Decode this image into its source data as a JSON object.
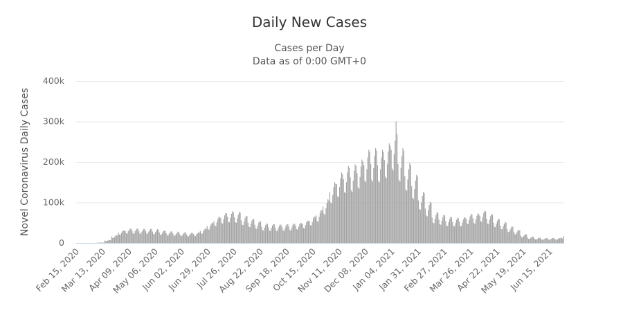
{
  "chart_data": {
    "type": "bar",
    "title": "Daily New Cases",
    "subtitle": [
      "Cases per Day",
      "Data as of 0:00 GMT+0"
    ],
    "ylabel": "Novel Coronavirus Daily Cases",
    "xlabel": "",
    "ylim": [
      0,
      400000
    ],
    "yticks": [
      0,
      100000,
      200000,
      300000,
      400000
    ],
    "ytick_labels": [
      "0",
      "100k",
      "200k",
      "300k",
      "400k"
    ],
    "grid": true,
    "legend": "none",
    "bar_color": "#a3a3a3",
    "x_start": "2020-02-15",
    "x_interval": "1 day",
    "x_end": "2021-06-28",
    "xtick_dates": [
      "2020-02-15",
      "2020-03-13",
      "2020-04-09",
      "2020-05-06",
      "2020-06-02",
      "2020-06-29",
      "2020-07-26",
      "2020-08-22",
      "2020-09-18",
      "2020-10-15",
      "2020-11-11",
      "2020-12-08",
      "2021-01-04",
      "2021-01-31",
      "2021-02-27",
      "2021-03-26",
      "2021-04-22",
      "2021-05-19",
      "2021-06-15"
    ],
    "xtick_labels": [
      "Feb 15, 2020",
      "Mar 13, 2020",
      "Apr 09, 2020",
      "May 06, 2020",
      "Jun 02, 2020",
      "Jun 29, 2020",
      "Jul 26, 2020",
      "Aug 22, 2020",
      "Sep 18, 2020",
      "Oct 15, 2020",
      "Nov 11, 2020",
      "Dec 08, 2020",
      "Jan 04, 2021",
      "Jan 31, 2021",
      "Feb 27, 2021",
      "Mar 26, 2021",
      "Apr 22, 2021",
      "May 19, 2021",
      "Jun 15, 2021"
    ],
    "values": [
      0,
      0,
      0,
      0,
      0,
      0,
      0,
      0,
      0,
      0,
      0,
      0,
      0,
      0,
      0,
      0,
      0,
      0,
      0,
      0,
      0,
      1000,
      1000,
      1000,
      1000,
      1000,
      1000,
      1000,
      6000,
      5000,
      5000,
      6000,
      7000,
      7000,
      7000,
      16000,
      13000,
      12000,
      15000,
      18000,
      19000,
      19000,
      26000,
      21000,
      20000,
      25000,
      29000,
      31000,
      30000,
      30000,
      24000,
      23000,
      29000,
      33000,
      36000,
      35000,
      30000,
      24000,
      23000,
      29000,
      33000,
      36000,
      35000,
      29000,
      23000,
      23000,
      28000,
      32000,
      35000,
      34000,
      29000,
      23000,
      23000,
      28000,
      32000,
      35000,
      34000,
      28000,
      22000,
      22000,
      27000,
      31000,
      34000,
      33000,
      26000,
      21000,
      20000,
      25000,
      29000,
      31000,
      30000,
      24000,
      19000,
      19000,
      23000,
      26000,
      29000,
      28000,
      23000,
      18000,
      18000,
      22000,
      25000,
      28000,
      27000,
      22000,
      18000,
      17000,
      21000,
      24000,
      26000,
      26000,
      21000,
      17000,
      16000,
      20000,
      23000,
      25000,
      25000,
      22000,
      18000,
      17000,
      21000,
      24000,
      26000,
      26000,
      30000,
      24000,
      23000,
      29000,
      33000,
      36000,
      35000,
      42000,
      34000,
      33000,
      40000,
      46000,
      50000,
      49000,
      54000,
      43000,
      42000,
      51000,
      59000,
      65000,
      63000,
      62000,
      50000,
      48000,
      59000,
      68000,
      74000,
      73000,
      65000,
      52000,
      51000,
      62000,
      72000,
      78000,
      76000,
      64000,
      51000,
      50000,
      61000,
      70000,
      77000,
      75000,
      56000,
      45000,
      44000,
      53000,
      62000,
      67000,
      66000,
      50000,
      40000,
      39000,
      48000,
      55000,
      60000,
      59000,
      45000,
      36000,
      35000,
      43000,
      50000,
      54000,
      53000,
      40000,
      32000,
      31000,
      38000,
      44000,
      48000,
      47000,
      39000,
      31000,
      30000,
      37000,
      43000,
      47000,
      46000,
      38000,
      30000,
      30000,
      36000,
      42000,
      46000,
      44000,
      39000,
      31000,
      30000,
      37000,
      43000,
      47000,
      46000,
      40000,
      32000,
      31000,
      38000,
      44000,
      48000,
      47000,
      42000,
      34000,
      33000,
      40000,
      46000,
      50000,
      49000,
      46000,
      37000,
      36000,
      44000,
      51000,
      55000,
      54000,
      55000,
      44000,
      43000,
      52000,
      61000,
      66000,
      64000,
      68000,
      54000,
      53000,
      65000,
      75000,
      82000,
      80000,
      90000,
      72000,
      70000,
      86000,
      99000,
      108000,
      105000,
      125000,
      100000,
      98000,
      119000,
      138000,
      150000,
      146000,
      145000,
      116000,
      113000,
      138000,
      160000,
      174000,
      170000,
      158000,
      126000,
      123000,
      150000,
      174000,
      190000,
      185000,
      162000,
      130000,
      126000,
      154000,
      178000,
      194000,
      190000,
      172000,
      138000,
      134000,
      163000,
      189000,
      206000,
      201000,
      192000,
      154000,
      150000,
      182000,
      211000,
      230000,
      225000,
      195000,
      156000,
      152000,
      185000,
      215000,
      234000,
      228000,
      192000,
      154000,
      150000,
      182000,
      211000,
      230000,
      225000,
      205000,
      164000,
      160000,
      195000,
      226000,
      246000,
      240000,
      230000,
      184000,
      179000,
      219000,
      253000,
      300000,
      269000,
      195000,
      156000,
      152000,
      185000,
      215000,
      234000,
      228000,
      165000,
      132000,
      129000,
      157000,
      182000,
      198000,
      193000,
      140000,
      112000,
      109000,
      133000,
      154000,
      168000,
      164000,
      105000,
      84000,
      82000,
      100000,
      116000,
      126000,
      123000,
      85000,
      68000,
      66000,
      81000,
      94000,
      102000,
      99000,
      63000,
      50000,
      49000,
      60000,
      69000,
      76000,
      74000,
      58000,
      46000,
      45000,
      55000,
      64000,
      70000,
      68000,
      54000,
      43000,
      42000,
      51000,
      59000,
      65000,
      63000,
      52000,
      42000,
      41000,
      49000,
      57000,
      62000,
      61000,
      53000,
      42000,
      41000,
      50000,
      58000,
      64000,
      62000,
      60000,
      48000,
      47000,
      57000,
      66000,
      72000,
      70000,
      61000,
      49000,
      48000,
      58000,
      67000,
      73000,
      71000,
      67000,
      54000,
      52000,
      64000,
      74000,
      80000,
      78000,
      60000,
      48000,
      47000,
      57000,
      66000,
      72000,
      70000,
      50000,
      40000,
      39000,
      48000,
      55000,
      60000,
      59000,
      43000,
      34000,
      34000,
      41000,
      47000,
      52000,
      50000,
      34000,
      27000,
      27000,
      32000,
      37000,
      41000,
      40000,
      27000,
      22000,
      21000,
      26000,
      30000,
      32000,
      32000,
      18000,
      14000,
      14000,
      17000,
      20000,
      22000,
      21000,
      13000,
      10000,
      10000,
      12000,
      14000,
      16000,
      15000,
      11000,
      9000,
      9000,
      10000,
      12000,
      13000,
      13000,
      10000,
      8000,
      8000,
      10000,
      11000,
      12000,
      12000,
      10000,
      8000,
      8000,
      10000,
      11000,
      12000,
      12000,
      10000,
      8000,
      8000,
      10000,
      11000,
      12000,
      12000,
      13000,
      11000,
      17000
    ]
  }
}
